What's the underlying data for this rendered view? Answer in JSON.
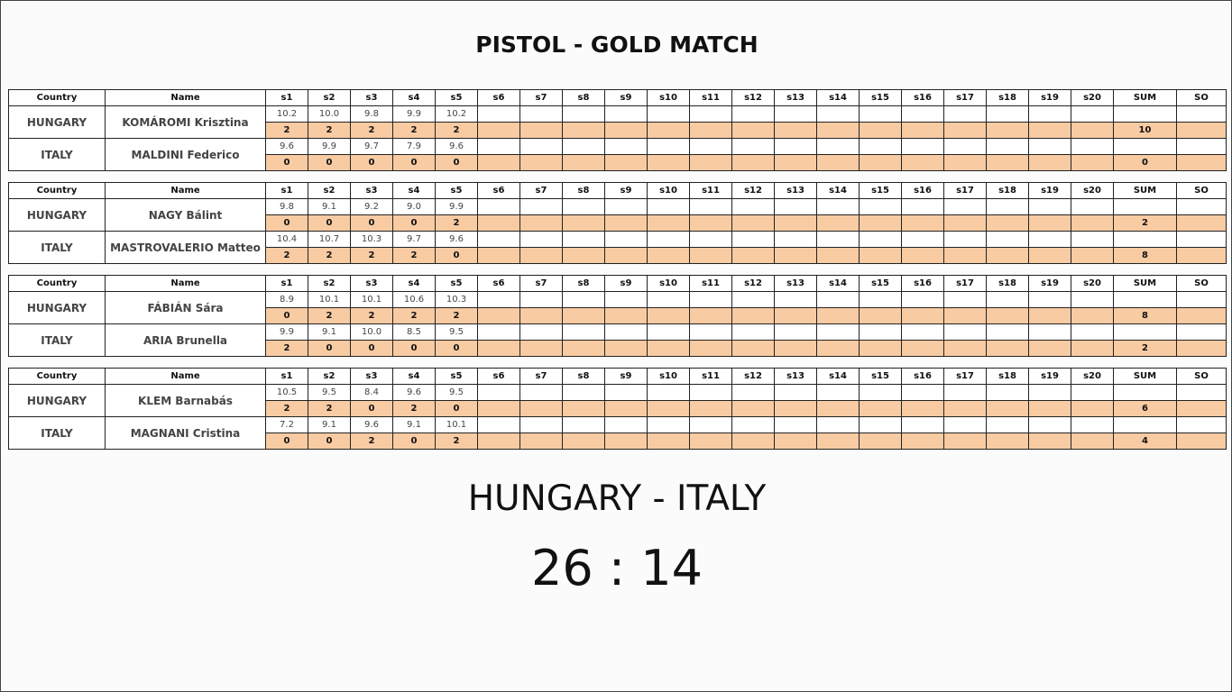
{
  "title": "PISTOL - GOLD MATCH",
  "columns": [
    "Country",
    "Name",
    "s1",
    "s2",
    "s3",
    "s4",
    "s5",
    "s6",
    "s7",
    "s8",
    "s9",
    "s10",
    "s11",
    "s12",
    "s13",
    "s14",
    "s15",
    "s16",
    "s17",
    "s18",
    "s19",
    "s20",
    "SUM",
    "SO"
  ],
  "matches": [
    {
      "teams": [
        {
          "country": "HUNGARY",
          "name": "KOMÁROMI Krisztina",
          "shots": [
            "10.2",
            "10.0",
            "9.8",
            "9.9",
            "10.2"
          ],
          "points": [
            2,
            2,
            2,
            2,
            2
          ],
          "sum": 10
        },
        {
          "country": "ITALY",
          "name": "MALDINI Federico",
          "shots": [
            "9.6",
            "9.9",
            "9.7",
            "7.9",
            "9.6"
          ],
          "points": [
            0,
            0,
            0,
            0,
            0
          ],
          "sum": 0
        }
      ]
    },
    {
      "teams": [
        {
          "country": "HUNGARY",
          "name": "NAGY Bálint",
          "shots": [
            "9.8",
            "9.1",
            "9.2",
            "9.0",
            "9.9"
          ],
          "points": [
            0,
            0,
            0,
            0,
            2
          ],
          "sum": 2
        },
        {
          "country": "ITALY",
          "name": "MASTROVALERIO Matteo",
          "shots": [
            "10.4",
            "10.7",
            "10.3",
            "9.7",
            "9.6"
          ],
          "points": [
            2,
            2,
            2,
            2,
            0
          ],
          "sum": 8
        }
      ]
    },
    {
      "teams": [
        {
          "country": "HUNGARY",
          "name": "FÁBIÁN Sára",
          "shots": [
            "8.9",
            "10.1",
            "10.1",
            "10.6",
            "10.3"
          ],
          "points": [
            0,
            2,
            2,
            2,
            2
          ],
          "sum": 8
        },
        {
          "country": "ITALY",
          "name": "ARIA Brunella",
          "shots": [
            "9.9",
            "9.1",
            "10.0",
            "8.5",
            "9.5"
          ],
          "points": [
            2,
            0,
            0,
            0,
            0
          ],
          "sum": 2
        }
      ]
    },
    {
      "teams": [
        {
          "country": "HUNGARY",
          "name": "KLEM Barnabás",
          "shots": [
            "10.5",
            "9.5",
            "8.4",
            "9.6",
            "9.5"
          ],
          "points": [
            2,
            2,
            0,
            2,
            0
          ],
          "sum": 6
        },
        {
          "country": "ITALY",
          "name": "MAGNANI Cristina",
          "shots": [
            "7.2",
            "9.1",
            "9.6",
            "9.1",
            "10.1"
          ],
          "points": [
            0,
            0,
            2,
            0,
            2
          ],
          "sum": 4
        }
      ]
    }
  ],
  "result": {
    "teams": "HUNGARY - ITALY",
    "score": "26 : 14"
  }
}
